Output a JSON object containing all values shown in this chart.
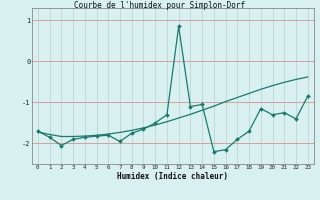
{
  "title": "Courbe de l'humidex pour Simplon-Dorf",
  "xlabel": "Humidex (Indice chaleur)",
  "ylabel": "",
  "bg_color": "#d8f0f0",
  "line_color": "#1a7a6e",
  "x_data": [
    0,
    1,
    2,
    3,
    4,
    5,
    6,
    7,
    8,
    9,
    10,
    11,
    12,
    13,
    14,
    15,
    16,
    17,
    18,
    19,
    20,
    21,
    22,
    23
  ],
  "y_spiky": [
    -1.7,
    -1.85,
    -2.05,
    -1.9,
    -1.85,
    -1.82,
    -1.8,
    -1.95,
    -1.75,
    -1.65,
    -1.5,
    -1.3,
    0.85,
    -1.1,
    -1.05,
    -2.2,
    -2.15,
    -1.9,
    -1.7,
    -1.15,
    -1.3,
    -1.25,
    -1.4,
    -0.85
  ],
  "y_trend": [
    -1.72,
    -1.78,
    -1.83,
    -1.83,
    -1.82,
    -1.8,
    -1.77,
    -1.73,
    -1.68,
    -1.62,
    -1.55,
    -1.47,
    -1.38,
    -1.29,
    -1.19,
    -1.09,
    -0.98,
    -0.88,
    -0.78,
    -0.68,
    -0.59,
    -0.51,
    -0.44,
    -0.38
  ],
  "xlim": [
    -0.5,
    23.5
  ],
  "ylim": [
    -2.5,
    1.3
  ],
  "yticks": [
    1,
    0,
    -1,
    -2
  ],
  "xticks": [
    0,
    1,
    2,
    3,
    4,
    5,
    6,
    7,
    8,
    9,
    10,
    11,
    12,
    13,
    14,
    15,
    16,
    17,
    18,
    19,
    20,
    21,
    22,
    23
  ],
  "hgrid_color": "#d4a0a0",
  "vgrid_color": "#b8d0d0"
}
